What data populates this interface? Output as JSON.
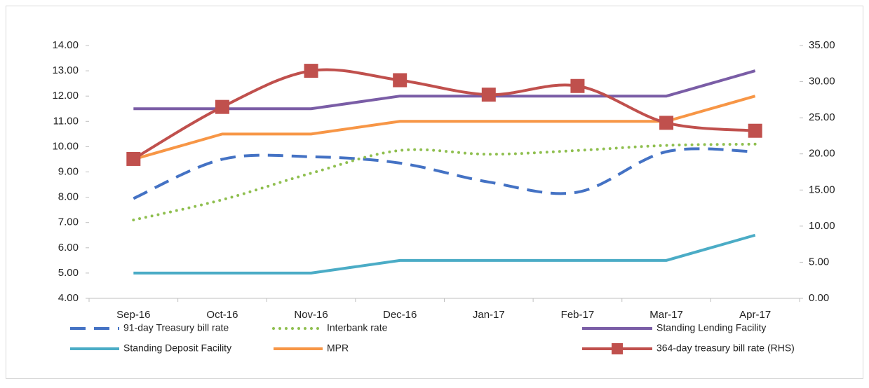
{
  "chart_data": {
    "type": "line",
    "categories": [
      "Sep-16",
      "Oct-16",
      "Nov-16",
      "Dec-16",
      "Jan-17",
      "Feb-17",
      "Mar-17",
      "Apr-17"
    ],
    "series": [
      {
        "name": "91-day Treasury bill rate",
        "color": "#4472c4",
        "style": "dashed",
        "smooth": true,
        "values": [
          7.95,
          9.5,
          9.6,
          9.35,
          8.6,
          8.2,
          9.8,
          9.8
        ]
      },
      {
        "name": "Interbank rate",
        "color": "#8fbf4f",
        "style": "dotted",
        "smooth": true,
        "values": [
          7.1,
          7.9,
          8.95,
          9.85,
          9.7,
          9.85,
          10.05,
          10.1
        ]
      },
      {
        "name": "Standing Lending Facility",
        "color": "#7a5da6",
        "style": "solid",
        "smooth": false,
        "values": [
          11.5,
          11.5,
          11.5,
          12,
          12,
          12,
          12,
          13
        ]
      },
      {
        "name": "Standing Deposit Facility",
        "color": "#4bacc6",
        "style": "solid",
        "smooth": false,
        "values": [
          5,
          5,
          5,
          5.5,
          5.5,
          5.5,
          5.5,
          6.5
        ]
      },
      {
        "name": "MPR",
        "color": "#f79646",
        "style": "solid",
        "smooth": false,
        "values": [
          9.5,
          10.5,
          10.5,
          11,
          11,
          11,
          11,
          12
        ]
      },
      {
        "name": "364-day treasury bill rate (RHS)",
        "color": "#c0504d",
        "style": "solid",
        "smooth": true,
        "marker": "square",
        "axis": "y2",
        "values": [
          19.3,
          26.5,
          31.5,
          30.2,
          28.2,
          29.4,
          24.3,
          23.2
        ]
      }
    ],
    "ylim": [
      4,
      14
    ],
    "yticks": [
      {
        "value": 4,
        "label": "4.00"
      },
      {
        "value": 5,
        "label": "5.00"
      },
      {
        "value": 6,
        "label": "6.00"
      },
      {
        "value": 7,
        "label": "7.00"
      },
      {
        "value": 8,
        "label": "8.00"
      },
      {
        "value": 9,
        "label": "9.00"
      },
      {
        "value": 10,
        "label": "10.00"
      },
      {
        "value": 11,
        "label": "11.00"
      },
      {
        "value": 12,
        "label": "12.00"
      },
      {
        "value": 13,
        "label": "13.00"
      },
      {
        "value": 14,
        "label": "14.00"
      }
    ],
    "y2lim": [
      0,
      35
    ],
    "y2ticks": [
      {
        "value": 0,
        "label": "0.00"
      },
      {
        "value": 5,
        "label": "5.00"
      },
      {
        "value": 10,
        "label": "10.00"
      },
      {
        "value": 15,
        "label": "15.00"
      },
      {
        "value": 20,
        "label": "20.00"
      },
      {
        "value": 25,
        "label": "25.00"
      },
      {
        "value": 30,
        "label": "30.00"
      },
      {
        "value": 35,
        "label": "35.00"
      }
    ],
    "grid": false,
    "legend": "bottom"
  }
}
